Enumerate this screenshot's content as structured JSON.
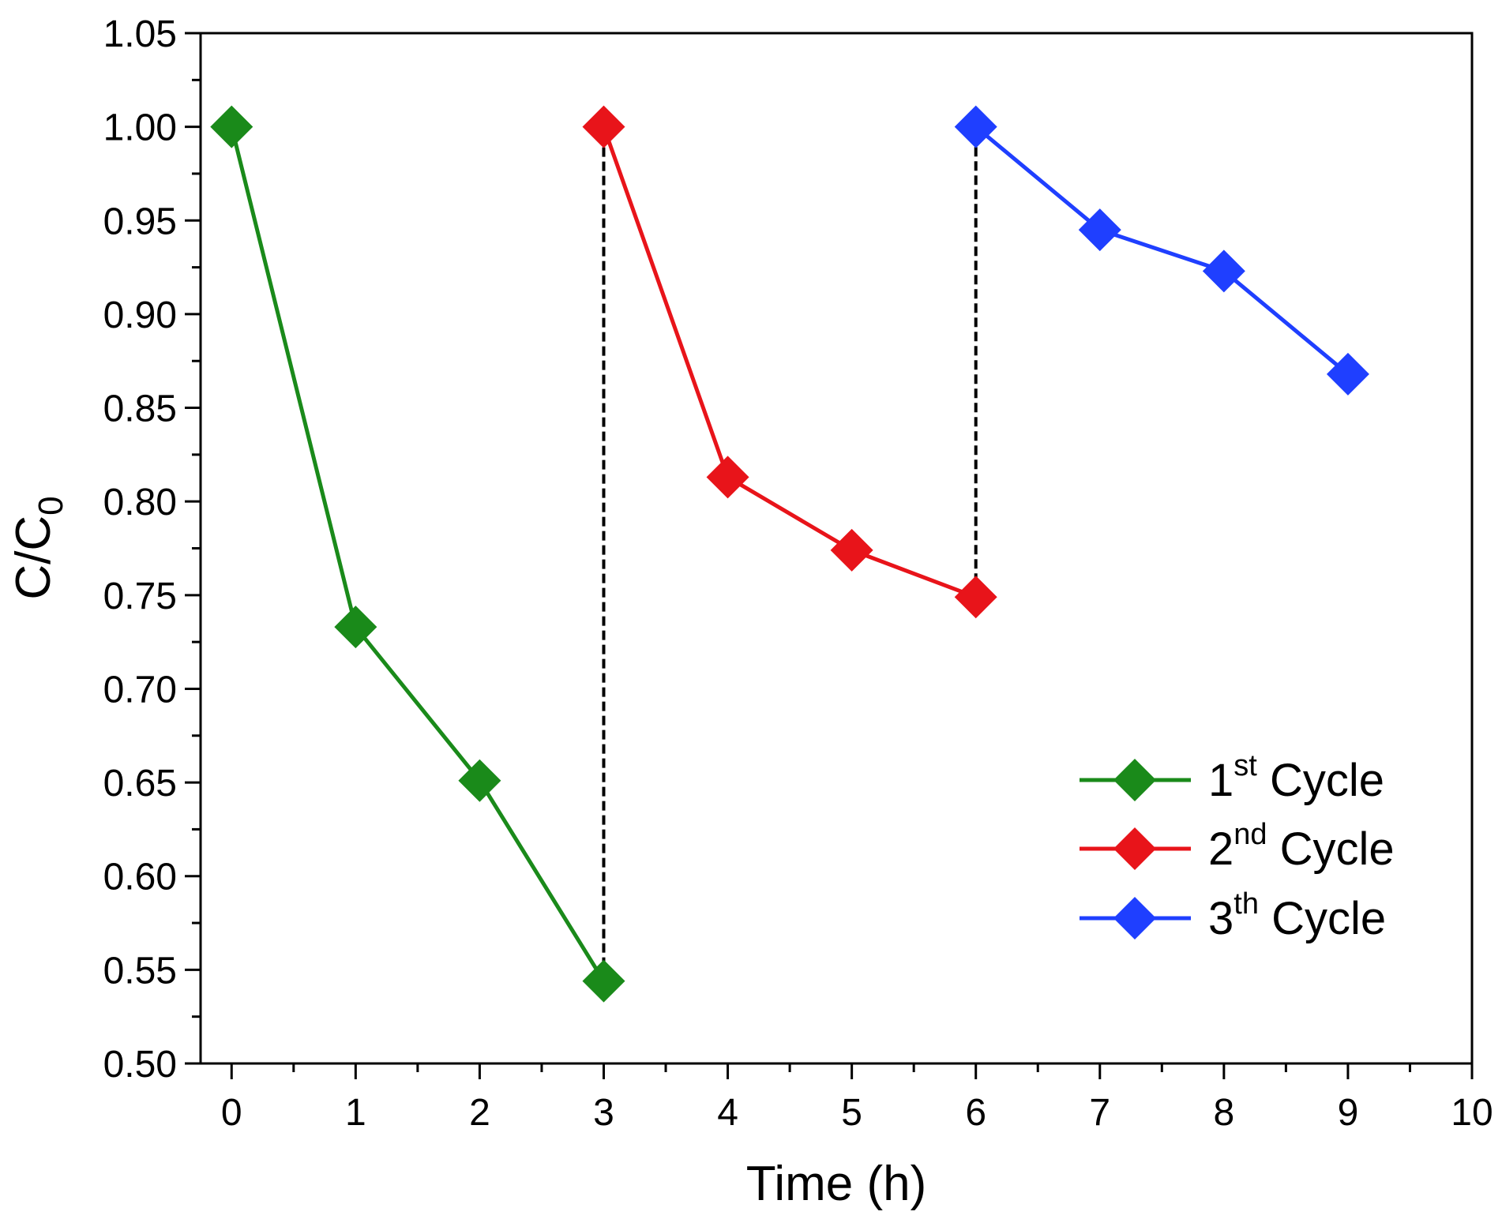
{
  "chart_data": {
    "type": "line",
    "title": "",
    "xlabel": "Time (h)",
    "ylabel": {
      "main": "C/C",
      "sub": "0"
    },
    "xlim": [
      -0.25,
      10
    ],
    "ylim": [
      0.5,
      1.05
    ],
    "x_ticks": [
      0,
      1,
      2,
      3,
      4,
      5,
      6,
      7,
      8,
      9,
      10
    ],
    "x_tick_labels": [
      "0",
      "1",
      "2",
      "3",
      "4",
      "5",
      "6",
      "7",
      "8",
      "9",
      "10"
    ],
    "y_ticks": [
      0.5,
      0.55,
      0.6,
      0.65,
      0.7,
      0.75,
      0.8,
      0.85,
      0.9,
      0.95,
      1.0,
      1.05
    ],
    "y_tick_labels": [
      "0.50",
      "0.55",
      "0.60",
      "0.65",
      "0.70",
      "0.75",
      "0.80",
      "0.85",
      "0.90",
      "0.95",
      "1.00",
      "1.05"
    ],
    "grid": false,
    "legend_position": "bottom-right",
    "series": [
      {
        "name": "1st Cycle",
        "label_num": "1",
        "label_sup": "st",
        "label_rest": " Cycle",
        "color": "#1a8a1a",
        "marker": "diamond",
        "x": [
          0,
          1,
          2,
          3
        ],
        "y": [
          1.0,
          0.733,
          0.651,
          0.544
        ]
      },
      {
        "name": "2nd Cycle",
        "label_num": "2",
        "label_sup": "nd",
        "label_rest": " Cycle",
        "color": "#e8141a",
        "marker": "diamond",
        "x": [
          3,
          4,
          5,
          6
        ],
        "y": [
          1.0,
          0.813,
          0.774,
          0.749
        ]
      },
      {
        "name": "3th Cycle",
        "label_num": "3",
        "label_sup": "th",
        "label_rest": " Cycle",
        "color": "#1f3fff",
        "marker": "diamond",
        "x": [
          6,
          7,
          8,
          9
        ],
        "y": [
          1.0,
          0.945,
          0.923,
          0.868
        ]
      }
    ],
    "annotations": [
      {
        "type": "dashed-vertical",
        "x": 3,
        "y_from": 0.544,
        "y_to": 1.0,
        "color": "#000000"
      },
      {
        "type": "dashed-vertical",
        "x": 6,
        "y_from": 0.749,
        "y_to": 1.0,
        "color": "#000000"
      }
    ]
  }
}
